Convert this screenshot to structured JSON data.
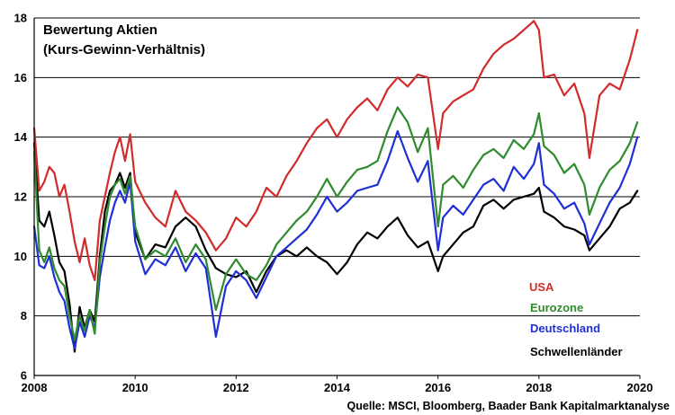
{
  "chart_data": {
    "type": "line",
    "title": "Bewertung Aktien",
    "subtitle": "(Kurs-Gewinn-Verhältnis)",
    "source": "Quelle: MSCI, Bloomberg, Baader Bank Kapitalmarktanalyse",
    "xlim": [
      2008,
      2020
    ],
    "ylim": [
      6,
      18
    ],
    "x_ticks": [
      "2008",
      "2010",
      "2012",
      "2014",
      "2016",
      "2018",
      "2020"
    ],
    "y_ticks": [
      "6",
      "8",
      "10",
      "12",
      "14",
      "16",
      "18"
    ],
    "grid": "horizontal",
    "legend_placement": "bottom-right",
    "series": [
      {
        "name": "USA",
        "color": "#d22b2b",
        "x": [
          2008.0,
          2008.1,
          2008.2,
          2008.3,
          2008.4,
          2008.5,
          2008.6,
          2008.7,
          2008.8,
          2008.9,
          2009.0,
          2009.1,
          2009.2,
          2009.3,
          2009.4,
          2009.5,
          2009.6,
          2009.7,
          2009.8,
          2009.9,
          2010.0,
          2010.2,
          2010.4,
          2010.6,
          2010.8,
          2011.0,
          2011.2,
          2011.4,
          2011.6,
          2011.8,
          2012.0,
          2012.2,
          2012.4,
          2012.6,
          2012.8,
          2013.0,
          2013.2,
          2013.4,
          2013.6,
          2013.8,
          2014.0,
          2014.2,
          2014.4,
          2014.6,
          2014.8,
          2015.0,
          2015.2,
          2015.4,
          2015.6,
          2015.8,
          2016.0,
          2016.1,
          2016.3,
          2016.5,
          2016.7,
          2016.9,
          2017.1,
          2017.3,
          2017.5,
          2017.7,
          2017.9,
          2018.0,
          2018.1,
          2018.3,
          2018.5,
          2018.7,
          2018.9,
          2019.0,
          2019.2,
          2019.4,
          2019.6,
          2019.8,
          2019.95
        ],
        "values": [
          14.3,
          12.2,
          12.5,
          13.0,
          12.8,
          12.0,
          12.4,
          11.5,
          10.5,
          9.8,
          10.6,
          9.7,
          9.2,
          11.2,
          12.0,
          12.8,
          13.5,
          14.0,
          13.2,
          14.1,
          12.5,
          11.8,
          11.3,
          11.0,
          12.2,
          11.5,
          11.2,
          10.8,
          10.2,
          10.6,
          11.3,
          11.0,
          11.5,
          12.3,
          12.0,
          12.7,
          13.2,
          13.8,
          14.3,
          14.6,
          14.0,
          14.6,
          15.0,
          15.3,
          14.9,
          15.6,
          16.0,
          15.7,
          16.1,
          16.0,
          13.6,
          14.8,
          15.2,
          15.4,
          15.6,
          16.3,
          16.8,
          17.1,
          17.3,
          17.6,
          17.9,
          17.6,
          16.0,
          16.1,
          15.4,
          15.8,
          14.8,
          13.3,
          15.4,
          15.8,
          15.6,
          16.6,
          17.6
        ]
      },
      {
        "name": "Eurozone",
        "color": "#2e8b2e",
        "x": [
          2008.0,
          2008.1,
          2008.2,
          2008.3,
          2008.4,
          2008.5,
          2008.6,
          2008.7,
          2008.8,
          2008.9,
          2009.0,
          2009.1,
          2009.2,
          2009.3,
          2009.4,
          2009.5,
          2009.6,
          2009.7,
          2009.8,
          2009.9,
          2010.0,
          2010.2,
          2010.4,
          2010.6,
          2010.8,
          2011.0,
          2011.2,
          2011.4,
          2011.6,
          2011.8,
          2012.0,
          2012.2,
          2012.4,
          2012.6,
          2012.8,
          2013.0,
          2013.2,
          2013.4,
          2013.6,
          2013.8,
          2014.0,
          2014.2,
          2014.4,
          2014.6,
          2014.8,
          2015.0,
          2015.2,
          2015.4,
          2015.6,
          2015.8,
          2016.0,
          2016.1,
          2016.3,
          2016.5,
          2016.7,
          2016.9,
          2017.1,
          2017.3,
          2017.5,
          2017.7,
          2017.9,
          2018.0,
          2018.1,
          2018.3,
          2018.5,
          2018.7,
          2018.9,
          2019.0,
          2019.2,
          2019.4,
          2019.6,
          2019.8,
          2019.95
        ],
        "values": [
          13.5,
          10.2,
          9.8,
          10.3,
          9.6,
          9.2,
          9.0,
          8.0,
          7.2,
          8.0,
          7.5,
          8.2,
          7.4,
          9.8,
          11.0,
          12.0,
          12.4,
          12.6,
          12.1,
          12.7,
          11.0,
          9.9,
          10.2,
          10.0,
          10.6,
          9.8,
          10.4,
          9.9,
          8.2,
          9.4,
          9.9,
          9.4,
          9.2,
          9.7,
          10.4,
          10.8,
          11.2,
          11.5,
          12.0,
          12.6,
          12.0,
          12.5,
          12.9,
          13.0,
          13.2,
          14.2,
          15.0,
          14.5,
          13.5,
          14.3,
          11.0,
          12.4,
          12.7,
          12.3,
          12.9,
          13.4,
          13.6,
          13.3,
          13.9,
          13.6,
          14.1,
          14.8,
          13.7,
          13.4,
          12.8,
          13.1,
          12.4,
          11.4,
          12.3,
          12.9,
          13.2,
          13.8,
          14.5
        ]
      },
      {
        "name": "Deutschland",
        "color": "#1f2fd6",
        "x": [
          2008.0,
          2008.1,
          2008.2,
          2008.3,
          2008.4,
          2008.5,
          2008.6,
          2008.7,
          2008.8,
          2008.9,
          2009.0,
          2009.1,
          2009.2,
          2009.3,
          2009.4,
          2009.5,
          2009.6,
          2009.7,
          2009.8,
          2009.9,
          2010.0,
          2010.2,
          2010.4,
          2010.6,
          2010.8,
          2011.0,
          2011.2,
          2011.4,
          2011.6,
          2011.8,
          2012.0,
          2012.2,
          2012.4,
          2012.6,
          2012.8,
          2013.0,
          2013.2,
          2013.4,
          2013.6,
          2013.8,
          2014.0,
          2014.2,
          2014.4,
          2014.6,
          2014.8,
          2015.0,
          2015.2,
          2015.4,
          2015.6,
          2015.8,
          2016.0,
          2016.1,
          2016.3,
          2016.5,
          2016.7,
          2016.9,
          2017.1,
          2017.3,
          2017.5,
          2017.7,
          2017.9,
          2018.0,
          2018.1,
          2018.3,
          2018.5,
          2018.7,
          2018.9,
          2019.0,
          2019.2,
          2019.4,
          2019.6,
          2019.8,
          2019.95
        ],
        "values": [
          11.0,
          9.7,
          9.6,
          10.0,
          9.3,
          8.8,
          8.5,
          7.6,
          6.9,
          7.8,
          7.3,
          8.0,
          7.6,
          9.3,
          10.3,
          11.2,
          11.8,
          12.2,
          11.8,
          12.5,
          10.5,
          9.4,
          9.9,
          9.7,
          10.3,
          9.5,
          10.1,
          9.6,
          7.3,
          9.0,
          9.5,
          9.2,
          8.6,
          9.3,
          10.0,
          10.3,
          10.6,
          10.9,
          11.4,
          12.0,
          11.5,
          11.8,
          12.2,
          12.3,
          12.4,
          13.2,
          14.2,
          13.3,
          12.5,
          13.2,
          10.2,
          11.3,
          11.7,
          11.4,
          11.9,
          12.4,
          12.6,
          12.2,
          13.0,
          12.6,
          13.1,
          13.8,
          12.4,
          12.1,
          11.6,
          11.8,
          11.1,
          10.4,
          11.1,
          11.8,
          12.3,
          13.1,
          14.0
        ]
      },
      {
        "name": "Schwellenländer",
        "color": "#000000",
        "x": [
          2008.0,
          2008.1,
          2008.2,
          2008.3,
          2008.4,
          2008.5,
          2008.6,
          2008.7,
          2008.8,
          2008.9,
          2009.0,
          2009.1,
          2009.2,
          2009.3,
          2009.4,
          2009.5,
          2009.6,
          2009.7,
          2009.8,
          2009.9,
          2010.0,
          2010.2,
          2010.4,
          2010.6,
          2010.8,
          2011.0,
          2011.2,
          2011.4,
          2011.6,
          2011.8,
          2012.0,
          2012.2,
          2012.4,
          2012.6,
          2012.8,
          2013.0,
          2013.2,
          2013.4,
          2013.6,
          2013.8,
          2014.0,
          2014.2,
          2014.4,
          2014.6,
          2014.8,
          2015.0,
          2015.2,
          2015.4,
          2015.6,
          2015.8,
          2016.0,
          2016.1,
          2016.3,
          2016.5,
          2016.7,
          2016.9,
          2017.1,
          2017.3,
          2017.5,
          2017.7,
          2017.9,
          2018.0,
          2018.1,
          2018.3,
          2018.5,
          2018.7,
          2018.9,
          2019.0,
          2019.2,
          2019.4,
          2019.6,
          2019.8,
          2019.95
        ],
        "values": [
          13.8,
          11.2,
          11.0,
          11.5,
          10.7,
          9.8,
          9.5,
          8.4,
          6.8,
          8.3,
          7.6,
          8.2,
          7.8,
          10.0,
          11.5,
          12.2,
          12.4,
          12.8,
          12.3,
          12.8,
          10.8,
          9.9,
          10.4,
          10.3,
          11.0,
          11.3,
          11.0,
          10.2,
          9.6,
          9.4,
          9.3,
          9.5,
          8.8,
          9.5,
          10.0,
          10.2,
          10.0,
          10.3,
          10.0,
          9.8,
          9.4,
          9.8,
          10.4,
          10.8,
          10.6,
          11.0,
          11.3,
          10.7,
          10.3,
          10.5,
          9.5,
          10.0,
          10.4,
          10.8,
          11.0,
          11.7,
          11.9,
          11.6,
          11.9,
          12.0,
          12.1,
          12.3,
          11.5,
          11.3,
          11.0,
          10.9,
          10.7,
          10.2,
          10.6,
          11.0,
          11.6,
          11.8,
          12.2
        ]
      }
    ]
  }
}
